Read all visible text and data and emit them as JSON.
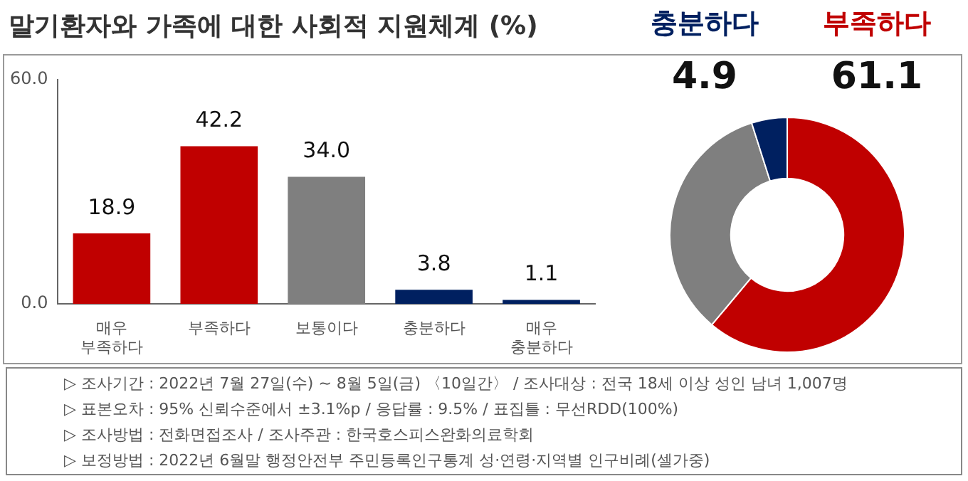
{
  "chart_data": [
    {
      "type": "bar",
      "title": "말기환자와 가족에 대한 사회적 지원체계 (%)",
      "categories": [
        "매우 부족하다",
        "부족하다",
        "보통이다",
        "충분하다",
        "매우 충분하다"
      ],
      "values": [
        18.9,
        42.2,
        34.0,
        3.8,
        1.1
      ],
      "colors": [
        "#c00000",
        "#c00000",
        "#7f7f7f",
        "#002060",
        "#002060"
      ],
      "value_labels": [
        "18.9",
        "42.2",
        "34.0",
        "3.8",
        "1.1"
      ],
      "ylim": [
        0,
        60
      ],
      "yticks": [
        {
          "value": 0,
          "label": "0.0"
        },
        {
          "value": 60,
          "label": "60.0"
        }
      ],
      "grid": false,
      "annotations": [
        "▷ 조사기간 : 2022년 7월 27일(수) ~ 8월 5일(금) 〈10일간〉 / 조사대상 : 전국 18세 이상 성인 남녀 1,007명",
        "▷ 표본오차 : 95% 신뢰수준에서 ±3.1%p / 응답률 : 9.5% / 표집틀 : 무선RDD(100%)",
        "▷ 조사방법 : 전화면접조사 / 조사주관 : 한국호스피스완화의료학회",
        "▷ 보정방법 : 2022년 6월말 행정안전부 주민등록인구통계 성·연령·지역별 인구비례(셀가중)"
      ]
    },
    {
      "type": "donut",
      "categories": [
        "부족하다",
        null,
        "충분하다"
      ],
      "values": [
        61.1,
        34.0,
        4.9
      ],
      "colors": [
        "#c00000",
        "#7f7f7f",
        "#002060"
      ],
      "value_labels": [
        "61.1",
        null,
        "4.9"
      ]
    }
  ]
}
